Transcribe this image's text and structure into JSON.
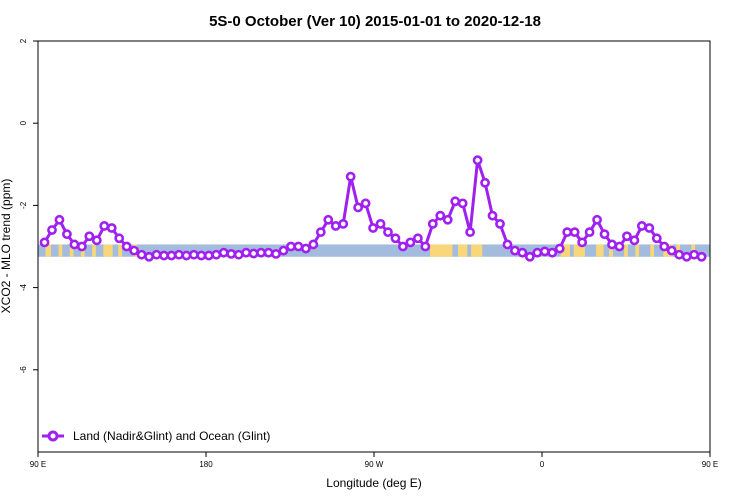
{
  "chart_data": {
    "type": "line",
    "title": "5S-0 October (Ver 10)   2015-01-01 to 2020-12-18",
    "xlabel": "Longitude (deg E)",
    "ylabel": "XCO2 - MLO trend (ppm)",
    "xlim": [
      90,
      450
    ],
    "ylim": [
      -8,
      2
    ],
    "x_ticks": [
      {
        "value": 90,
        "label": "90 E"
      },
      {
        "value": 180,
        "label": "180"
      },
      {
        "value": 270,
        "label": "90 W"
      },
      {
        "value": 360,
        "label": "0"
      },
      {
        "value": 450,
        "label": "90 E"
      },
      {
        "value": 540,
        "label": "180"
      }
    ],
    "y_ticks": [
      {
        "value": 2,
        "label": "2"
      },
      {
        "value": 0,
        "label": "0"
      },
      {
        "value": -2,
        "label": "-2"
      },
      {
        "value": -4,
        "label": "-4"
      },
      {
        "value": -6,
        "label": "-6"
      }
    ],
    "grid": false,
    "legend_position": "bottom-left",
    "colors": {
      "series": "#a020f0",
      "ocean": "#a3bbdd",
      "land": "#f7d779"
    },
    "series": [
      {
        "name": "Land (Nadir&Glint) and Ocean (Glint)",
        "x": [
          93.5,
          97.5,
          101.5,
          105.5,
          109.5,
          113.5,
          117.5,
          121.5,
          125.5,
          129.5,
          133.5,
          137.5,
          141.5,
          145.5,
          149.5,
          153.5,
          157.5,
          161.5,
          165.5,
          169.5,
          173.5,
          177.5,
          181.5,
          185.5,
          189.5,
          193.5,
          197.5,
          201.5,
          205.5,
          209.5,
          213.5,
          217.5,
          221.5,
          225.5,
          229.5,
          233.5,
          237.5,
          241.5,
          245.5,
          249.5,
          253.5,
          257.5,
          261.5,
          265.5,
          269.5,
          273.5,
          277.5,
          281.5,
          285.5,
          289.5,
          293.5,
          297.5,
          301.5,
          305.5,
          309.5,
          313.5,
          317.5,
          321.5,
          325.5,
          329.5,
          333.5,
          337.5,
          341.5,
          345.5,
          349.5,
          353.5,
          357.5,
          361.5,
          365.5,
          369.5,
          373.5,
          377.5,
          381.5,
          385.5,
          389.5,
          393.5,
          397.5,
          401.5,
          405.5,
          409.5,
          413.5,
          417.5,
          421.5,
          425.5,
          429.5,
          433.5,
          437.5,
          441.5,
          445.5
        ],
        "y": [
          -2.9,
          -2.6,
          -2.35,
          -2.7,
          -2.95,
          -3.0,
          -2.75,
          -2.85,
          -2.5,
          -2.55,
          -2.8,
          -3.0,
          -3.1,
          -3.2,
          -3.25,
          -3.2,
          -3.22,
          -3.22,
          -3.2,
          -3.22,
          -3.2,
          -3.22,
          -3.22,
          -3.2,
          -3.15,
          -3.18,
          -3.2,
          -3.15,
          -3.17,
          -3.15,
          -3.15,
          -3.18,
          -3.1,
          -3.0,
          -3.0,
          -3.05,
          -2.95,
          -2.65,
          -2.35,
          -2.5,
          -2.45,
          -1.3,
          -2.05,
          -1.95,
          -2.55,
          -2.45,
          -2.65,
          -2.8,
          -3.0,
          -2.9,
          -2.8,
          -3.0,
          -2.45,
          -2.25,
          -2.35,
          -1.9,
          -1.95,
          -2.65,
          -0.9,
          -1.45,
          -2.25,
          -2.45,
          -2.95,
          -3.1,
          -3.15,
          -3.25,
          -3.15,
          -3.12,
          -3.15,
          -3.05,
          -2.65,
          -2.65,
          -2.9,
          -2.65,
          -2.35,
          -2.7,
          -2.95,
          -3.0,
          -2.75,
          -2.85,
          -2.5,
          -2.55,
          -2.8,
          -3.0,
          -3.1,
          -3.2,
          -3.25,
          -3.2,
          -3.25
        ]
      }
    ],
    "background_band": {
      "y_range": [
        -3.25,
        -2.95
      ],
      "land_segments": [
        [
          94,
          97
        ],
        [
          101,
          103
        ],
        [
          107,
          109
        ],
        [
          113,
          115
        ],
        [
          119,
          121
        ],
        [
          125,
          130
        ],
        [
          133,
          135
        ],
        [
          141,
          143
        ],
        [
          300,
          312
        ],
        [
          315,
          320
        ],
        [
          322,
          328
        ],
        [
          370,
          375
        ],
        [
          377,
          383
        ],
        [
          389,
          393
        ],
        [
          396,
          398
        ],
        [
          404,
          406
        ],
        [
          410,
          412
        ],
        [
          418,
          420
        ],
        [
          425,
          430
        ],
        [
          432,
          434
        ],
        [
          440,
          442
        ]
      ]
    }
  }
}
